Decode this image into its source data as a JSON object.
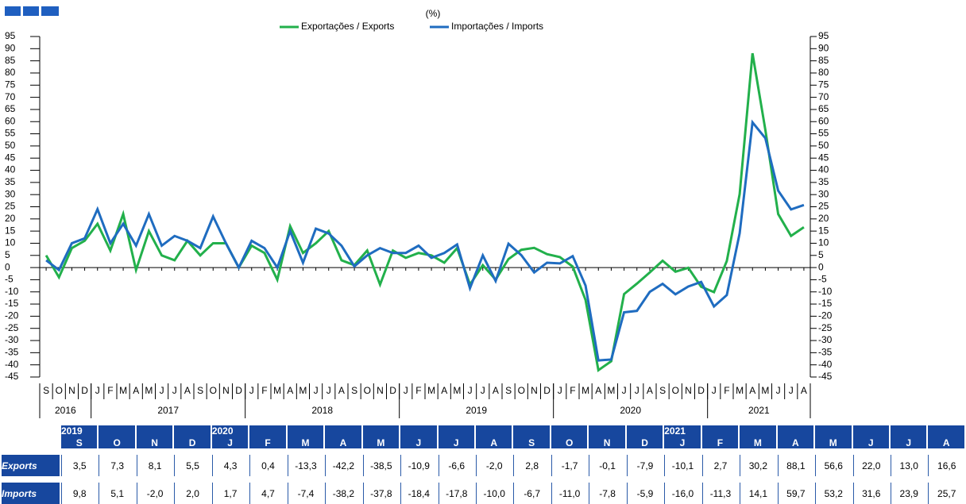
{
  "chart_data": {
    "type": "line",
    "title": "(%)",
    "categories": [
      "S",
      "O",
      "N",
      "D",
      "J",
      "F",
      "M",
      "A",
      "M",
      "J",
      "J",
      "A",
      "S",
      "O",
      "N",
      "D",
      "J",
      "F",
      "M",
      "A",
      "M",
      "J",
      "J",
      "A",
      "S",
      "O",
      "N",
      "D",
      "J",
      "F",
      "M",
      "A",
      "M",
      "J",
      "J",
      "A",
      "S",
      "O",
      "N",
      "D",
      "J",
      "F",
      "M",
      "A",
      "M",
      "J",
      "J",
      "A",
      "S",
      "O",
      "N",
      "D",
      "J",
      "F",
      "M",
      "A",
      "M",
      "J",
      "J",
      "A"
    ],
    "year_labels": [
      "2016",
      "2017",
      "2018",
      "2019",
      "2020",
      "2021"
    ],
    "series": [
      {
        "name": "Exportações / Exports",
        "color": "#22b04b",
        "values": [
          5,
          -4,
          8,
          11,
          18,
          7,
          22,
          -1,
          15,
          5,
          3,
          11,
          5,
          10,
          10,
          0,
          9,
          6,
          -5,
          17,
          6,
          10,
          15,
          3,
          1,
          7,
          -7,
          7,
          4,
          6,
          5,
          2,
          8,
          -7,
          1,
          -5,
          3.5,
          7.3,
          8.1,
          5.5,
          4.3,
          0.4,
          -13.3,
          -42.2,
          -38.5,
          -10.9,
          -6.6,
          -2.0,
          2.8,
          -1.7,
          -0.1,
          -7.9,
          -10.1,
          2.7,
          30.2,
          88.1,
          56.6,
          22.0,
          13.0,
          16.6
        ]
      },
      {
        "name": "Importações / Imports",
        "color": "#1f6cc0",
        "values": [
          3,
          -1,
          10,
          12,
          24,
          10,
          18,
          9,
          22,
          9,
          13,
          11,
          8,
          21,
          10,
          0,
          11,
          8,
          0,
          15,
          2,
          16,
          14,
          9,
          0.5,
          5,
          8,
          6,
          6,
          9,
          4,
          6,
          9.5,
          -8.5,
          5,
          -5.5,
          9.8,
          5.1,
          -2.0,
          2.0,
          1.7,
          4.7,
          -7.4,
          -38.2,
          -37.8,
          -18.4,
          -17.8,
          -10.0,
          -6.7,
          -11.0,
          -7.8,
          -5.9,
          -16.0,
          -11.3,
          14.1,
          59.7,
          53.2,
          31.6,
          23.9,
          25.7
        ]
      }
    ],
    "ylim": [
      -45,
      95
    ],
    "yticks": [
      -45,
      -40,
      -35,
      -30,
      -25,
      -20,
      -15,
      -10,
      -5,
      0,
      5,
      10,
      15,
      20,
      25,
      30,
      35,
      40,
      45,
      50,
      55,
      60,
      65,
      70,
      75,
      80,
      85,
      90,
      95
    ]
  },
  "table": {
    "years": [
      "2019",
      null,
      null,
      null,
      "2020",
      null,
      null,
      null,
      null,
      null,
      null,
      null,
      null,
      null,
      null,
      null,
      "2021",
      null,
      null,
      null,
      null,
      null,
      null,
      null
    ],
    "months": [
      "S",
      "O",
      "N",
      "D",
      "J",
      "F",
      "M",
      "A",
      "M",
      "J",
      "J",
      "A",
      "S",
      "O",
      "N",
      "D",
      "J",
      "F",
      "M",
      "A",
      "M",
      "J",
      "J",
      "A"
    ],
    "rows": [
      {
        "label": "Exports",
        "cells": [
          "3,5",
          "7,3",
          "8,1",
          "5,5",
          "4,3",
          "0,4",
          "-13,3",
          "-42,2",
          "-38,5",
          "-10,9",
          "-6,6",
          "-2,0",
          "2,8",
          "-1,7",
          "-0,1",
          "-7,9",
          "-10,1",
          "2,7",
          "30,2",
          "88,1",
          "56,6",
          "22,0",
          "13,0",
          "16,6"
        ]
      },
      {
        "label": "Imports",
        "cells": [
          "9,8",
          "5,1",
          "-2,0",
          "2,0",
          "1,7",
          "4,7",
          "-7,4",
          "-38,2",
          "-37,8",
          "-18,4",
          "-17,8",
          "-10,0",
          "-6,7",
          "-11,0",
          "-7,8",
          "-5,9",
          "-16,0",
          "-11,3",
          "14,1",
          "59,7",
          "53,2",
          "31,6",
          "23,9",
          "25,7"
        ]
      }
    ]
  }
}
